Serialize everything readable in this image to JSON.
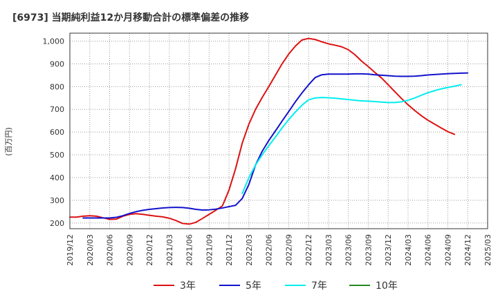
{
  "chart_data": {
    "type": "line",
    "title": "[6973]  当期純利益12か月移動合計の標準偏差の推移",
    "ylabel": "(百万円)",
    "xlabel": "",
    "ylim": [
      175,
      1035
    ],
    "yticks": [
      200,
      300,
      400,
      500,
      600,
      700,
      800,
      900,
      1000
    ],
    "ytick_labels": [
      "200",
      "300",
      "400",
      "500",
      "600",
      "700",
      "800",
      "900",
      "1,000"
    ],
    "x_start": "2019-12",
    "x_end": "2025-03",
    "xtick_labels": [
      "2019/12",
      "2020/03",
      "2020/06",
      "2020/09",
      "2020/12",
      "2021/03",
      "2021/06",
      "2021/09",
      "2021/12",
      "2022/03",
      "2022/06",
      "2022/09",
      "2022/12",
      "2023/03",
      "2023/06",
      "2023/09",
      "2023/12",
      "2024/03",
      "2024/06",
      "2024/09",
      "2024/12",
      "2025/03"
    ],
    "grid": true,
    "legend_position": "bottom",
    "series": [
      {
        "name": "3年",
        "color": "#dd1111",
        "start": "2019-12",
        "values": [
          226,
          226,
          230,
          232,
          230,
          223,
          216,
          217,
          230,
          238,
          241,
          238,
          234,
          230,
          227,
          221,
          211,
          198,
          195,
          203,
          220,
          238,
          256,
          275,
          345,
          440,
          552,
          635,
          700,
          752,
          800,
          850,
          900,
          943,
          978,
          1005,
          1012,
          1007,
          997,
          988,
          982,
          975,
          962,
          940,
          912,
          888,
          862,
          838,
          808,
          778,
          748,
          720,
          695,
          672,
          652,
          635,
          618,
          602,
          590
        ]
      },
      {
        "name": "5年",
        "color": "#1111cc",
        "start": "2020-02",
        "values": [
          222,
          222,
          222,
          222,
          222,
          225,
          232,
          242,
          250,
          256,
          260,
          263,
          266,
          268,
          269,
          268,
          265,
          260,
          257,
          258,
          261,
          266,
          272,
          278,
          308,
          370,
          455,
          515,
          563,
          605,
          648,
          690,
          733,
          772,
          808,
          840,
          852,
          855,
          855,
          855,
          855,
          856,
          856,
          855,
          852,
          850,
          848,
          846,
          845,
          845,
          846,
          848,
          851,
          853,
          855,
          857,
          858,
          859,
          860
        ]
      },
      {
        "name": "7年",
        "color": "#00eeee",
        "start": "2022-02",
        "values": [
          330,
          400,
          455,
          500,
          540,
          578,
          618,
          655,
          688,
          718,
          742,
          750,
          752,
          751,
          749,
          746,
          743,
          740,
          737,
          736,
          734,
          732,
          730,
          730,
          733,
          740,
          750,
          762,
          773,
          782,
          790,
          796,
          802,
          808
        ]
      },
      {
        "name": "10年",
        "color": "#228B22",
        "start": "2024-12",
        "values": []
      }
    ]
  }
}
